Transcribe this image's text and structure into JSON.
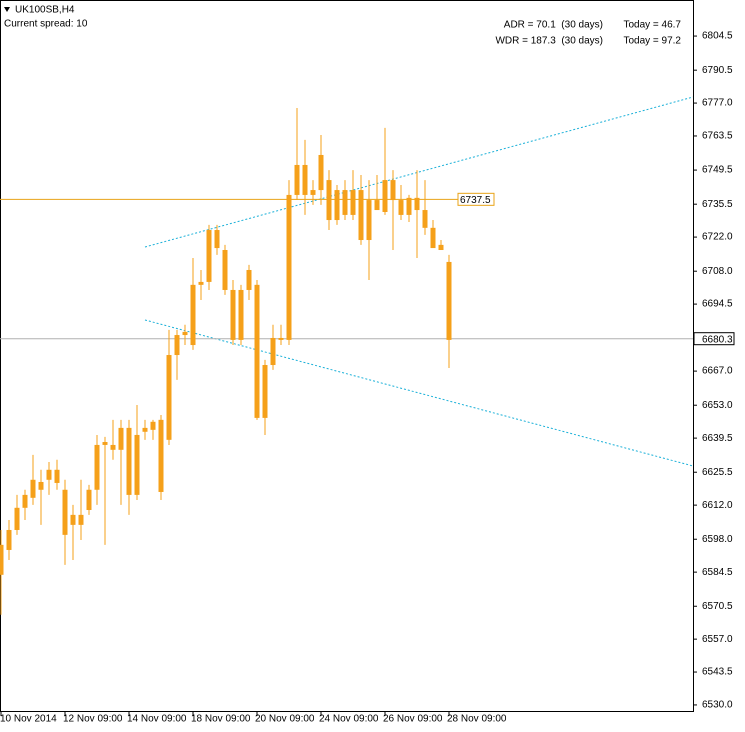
{
  "chart_data": {
    "type": "candlestick",
    "title": "UK100SB,H4",
    "subtitle": "Current spread: 10",
    "stats": [
      {
        "label": "ADR = 70.1  (30 days)",
        "today": "Today = 46.7"
      },
      {
        "label": "WDR = 187.3  (30 days)",
        "today": "Today = 97.2"
      }
    ],
    "color": "#f5a01a",
    "categories": [
      "10 Nov 2014",
      null,
      null,
      null,
      null,
      null,
      null,
      null,
      "12 Nov 09:00",
      null,
      null,
      null,
      null,
      null,
      null,
      null,
      "14 Nov 09:00",
      null,
      null,
      null,
      null,
      null,
      null,
      null,
      "18 Nov 09:00",
      null,
      null,
      null,
      null,
      null,
      null,
      null,
      "20 Nov 09:00",
      null,
      null,
      null,
      null,
      null,
      null,
      null,
      "24 Nov 09:00",
      null,
      null,
      null,
      null,
      null,
      null,
      null,
      "26 Nov 09:00",
      null,
      null,
      null,
      null,
      null,
      null,
      null,
      "28 Nov 09:00"
    ],
    "open": [
      6583.4,
      6593.6,
      6601.8,
      6610.9,
      6615.0,
      6618.3,
      6622.4,
      6626.5,
      6618.3,
      6603.9,
      6603.9,
      6610.0,
      6618.3,
      6637.9,
      6636.7,
      6634.7,
      6643.7,
      6616.2,
      6642.1,
      6642.9,
      6647.0,
      6638.8,
      6673.6,
      6681.8,
      6677.7,
      6702.4,
      6703.6,
      6724.9,
      6716.7,
      6700.3,
      6679.8,
      6700.3,
      6702.4,
      6647.8,
      6669.5,
      6680.6,
      6679.8,
      6739.3,
      6751.6,
      6739.3,
      6755.7,
      6745.4,
      6729.0,
      6741.3,
      6731.1,
      6741.3,
      6720.8,
      6737.2,
      6732.3,
      6745.4,
      6737.2,
      6731.1,
      6738.1,
      6733.1,
      6725.8,
      6718.8,
      6711.8
    ],
    "high": [
      6601.8,
      6605.9,
      6616.2,
      6618.3,
      6632.6,
      6626.5,
      6629.7,
      6630.6,
      6622.4,
      6612.1,
      6622.4,
      6620.3,
      6640.8,
      6640.0,
      6647.0,
      6647.0,
      6647.0,
      6653.1,
      6647.0,
      6647.0,
      6649.0,
      6683.9,
      6683.9,
      6686.0,
      6713.4,
      6708.5,
      6727.0,
      6727.0,
      6718.8,
      6704.4,
      6702.4,
      6710.6,
      6704.4,
      6671.6,
      6686.0,
      6686.0,
      6745.4,
      6775.0,
      6761.9,
      6745.4,
      6763.9,
      6749.5,
      6743.4,
      6745.4,
      6749.5,
      6747.5,
      6745.4,
      6747.5,
      6766.8,
      6749.5,
      6743.4,
      6739.3,
      6749.5,
      6745.4,
      6729.0,
      6720.8,
      6714.7
    ],
    "low": [
      6567.0,
      6589.5,
      6599.8,
      6605.9,
      6612.1,
      6603.9,
      6616.2,
      6618.3,
      6587.5,
      6589.5,
      6597.7,
      6608.0,
      6612.1,
      6595.7,
      6630.6,
      6612.1,
      6608.0,
      6614.1,
      6638.8,
      6638.8,
      6614.1,
      6636.7,
      6663.4,
      6677.7,
      6675.7,
      6696.2,
      6700.3,
      6714.7,
      6698.3,
      6677.7,
      6677.7,
      6696.2,
      6647.0,
      6640.8,
      6667.5,
      6677.7,
      6677.7,
      6737.2,
      6731.1,
      6735.2,
      6735.2,
      6724.9,
      6727.0,
      6729.0,
      6729.0,
      6718.8,
      6704.4,
      6733.1,
      6731.1,
      6716.7,
      6729.0,
      6728.2,
      6713.4,
      6722.9,
      6717.5,
      6716.7,
      6668.3
    ],
    "close": [
      6595.7,
      6601.8,
      6610.9,
      6616.2,
      6622.4,
      6621.5,
      6626.5,
      6621.1,
      6599.8,
      6608.0,
      6608.0,
      6618.3,
      6636.7,
      6636.7,
      6634.7,
      6643.7,
      6616.2,
      6640.8,
      6643.7,
      6646.2,
      6617.4,
      6673.6,
      6681.8,
      6683.1,
      6702.4,
      6703.6,
      6724.9,
      6717.5,
      6700.3,
      6679.8,
      6700.3,
      6708.5,
      6647.8,
      6669.5,
      6680.6,
      6679.8,
      6739.3,
      6751.6,
      6739.3,
      6741.3,
      6741.3,
      6729.0,
      6741.3,
      6731.1,
      6741.3,
      6720.8,
      6737.2,
      6733.1,
      6745.4,
      6737.2,
      6731.1,
      6738.1,
      6733.1,
      6725.8,
      6717.5,
      6716.7,
      6679.8
    ],
    "ylim": [
      6527.1,
      6819.3
    ],
    "yticks": [
      6804.5,
      6790.5,
      {
        "value": 6777,
        "label": "6777.0"
      },
      6763.5,
      6749.5,
      6735.5,
      {
        "value": 6722,
        "label": "6722.0"
      },
      {
        "value": 6708,
        "label": "6708.0"
      },
      6694.5,
      {
        "value": 6667,
        "label": "6667.0"
      },
      {
        "value": 6653,
        "label": "6653.0"
      },
      6639.5,
      6625.5,
      {
        "value": 6612,
        "label": "6612.0"
      },
      {
        "value": 6598,
        "label": "6598.0"
      },
      6584.5,
      6570.5,
      {
        "value": 6557,
        "label": "6557.0"
      },
      6543.5,
      {
        "value": 6530,
        "label": "6530.0"
      }
    ],
    "level_line": 6737.5,
    "level_color": "#e8a317",
    "bid": 6680.3,
    "grid": false
  }
}
